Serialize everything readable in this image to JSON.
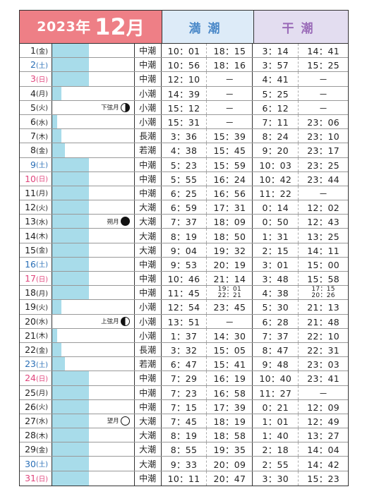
{
  "header": {
    "year": "2023",
    "year_suffix": "年",
    "month": "12",
    "month_suffix": "月",
    "high_label": "満潮",
    "low_label": "干潮"
  },
  "colors": {
    "month_bg": "#ee7f86",
    "high_bg": "#ddebf8",
    "low_bg": "#e3ddf0",
    "bar": "#a8dcea",
    "saturday": "#2a6fb6",
    "sunday": "#e0457c"
  },
  "rows": [
    {
      "day": "1",
      "wd": "(金)",
      "tide": "中潮",
      "bar": 0.45,
      "h1": "10：01",
      "h2": "18：15",
      "l1": "3：14",
      "l2": "14：41",
      "type": "n"
    },
    {
      "day": "2",
      "wd": "(土)",
      "tide": "中潮",
      "bar": 0.45,
      "h1": "10：56",
      "h2": "18：16",
      "l1": "3：57",
      "l2": "15：25",
      "type": "sat"
    },
    {
      "day": "3",
      "wd": "(日)",
      "tide": "中潮",
      "bar": 0.45,
      "h1": "12：10",
      "h2": "－",
      "l1": "4：41",
      "l2": "－",
      "type": "sun"
    },
    {
      "day": "4",
      "wd": "(月)",
      "tide": "小潮",
      "bar": 0.11,
      "h1": "14：39",
      "h2": "－",
      "l1": "5：25",
      "l2": "－",
      "type": "n"
    },
    {
      "day": "5",
      "wd": "(火)",
      "tide": "小潮",
      "bar": 0.0,
      "h1": "15：12",
      "h2": "－",
      "l1": "6：12",
      "l2": "－",
      "type": "n",
      "moon": "下弦月",
      "moonshape": "last"
    },
    {
      "day": "6",
      "wd": "(水)",
      "tide": "小潮",
      "bar": 0.06,
      "h1": "15：31",
      "h2": "－",
      "l1": "7：11",
      "l2": "23：06",
      "type": "n"
    },
    {
      "day": "7",
      "wd": "(木)",
      "tide": "長潮",
      "bar": 0.11,
      "h1": "3：36",
      "h2": "15：39",
      "l1": "8：24",
      "l2": "23：10",
      "type": "n"
    },
    {
      "day": "8",
      "wd": "(金)",
      "tide": "若潮",
      "bar": 0.16,
      "h1": "4：38",
      "h2": "15：45",
      "l1": "9：20",
      "l2": "23：17",
      "type": "n"
    },
    {
      "day": "9",
      "wd": "(土)",
      "tide": "中潮",
      "bar": 0.45,
      "h1": "5：23",
      "h2": "15：59",
      "l1": "10：03",
      "l2": "23：25",
      "type": "sat"
    },
    {
      "day": "10",
      "wd": "(日)",
      "tide": "中潮",
      "bar": 0.45,
      "h1": "5：55",
      "h2": "16：24",
      "l1": "10：42",
      "l2": "23：44",
      "type": "sun"
    },
    {
      "day": "11",
      "wd": "(月)",
      "tide": "中潮",
      "bar": 0.45,
      "h1": "6：25",
      "h2": "16：56",
      "l1": "11：22",
      "l2": "－",
      "type": "n"
    },
    {
      "day": "12",
      "wd": "(火)",
      "tide": "大潮",
      "bar": 0.45,
      "h1": "6：59",
      "h2": "17：31",
      "l1": "0：14",
      "l2": "12：02",
      "type": "n"
    },
    {
      "day": "13",
      "wd": "(水)",
      "tide": "大潮",
      "bar": 0.45,
      "h1": "7：37",
      "h2": "18：09",
      "l1": "0：50",
      "l2": "12：43",
      "type": "n",
      "moon": "朔月",
      "moonshape": "new"
    },
    {
      "day": "14",
      "wd": "(木)",
      "tide": "大潮",
      "bar": 0.45,
      "h1": "8：19",
      "h2": "18：50",
      "l1": "1：31",
      "l2": "13：25",
      "type": "n"
    },
    {
      "day": "15",
      "wd": "(金)",
      "tide": "大潮",
      "bar": 0.45,
      "h1": "9：04",
      "h2": "19：32",
      "l1": "2：15",
      "l2": "14：11",
      "type": "n"
    },
    {
      "day": "16",
      "wd": "(土)",
      "tide": "中潮",
      "bar": 0.45,
      "h1": "9：53",
      "h2": "20：19",
      "l1": "3：01",
      "l2": "15：00",
      "type": "sat"
    },
    {
      "day": "17",
      "wd": "(日)",
      "tide": "中潮",
      "bar": 0.45,
      "h1": "10：46",
      "h2": "21：14",
      "l1": "3：48",
      "l2": "15：58",
      "type": "sun"
    },
    {
      "day": "18",
      "wd": "(月)",
      "tide": "中潮",
      "bar": 0.45,
      "h1": "11：45",
      "h2a": "19：01",
      "h2b": "22：21",
      "l1": "4：38",
      "l2a": "17：15",
      "l2b": "20：26",
      "type": "n"
    },
    {
      "day": "19",
      "wd": "(火)",
      "tide": "小潮",
      "bar": 0.11,
      "h1": "12：54",
      "h2": "23：45",
      "l1": "5：30",
      "l2": "21：13",
      "type": "n"
    },
    {
      "day": "20",
      "wd": "(水)",
      "tide": "小潮",
      "bar": 0.0,
      "h1": "13：51",
      "h2": "－",
      "l1": "6：28",
      "l2": "21：48",
      "type": "n",
      "moon": "上弦月",
      "moonshape": "first"
    },
    {
      "day": "21",
      "wd": "(木)",
      "tide": "小潮",
      "bar": 0.06,
      "h1": "1：37",
      "h2": "14：30",
      "l1": "7：37",
      "l2": "22：10",
      "type": "n"
    },
    {
      "day": "22",
      "wd": "(金)",
      "tide": "長潮",
      "bar": 0.11,
      "h1": "3：32",
      "h2": "15：05",
      "l1": "8：47",
      "l2": "22：31",
      "type": "n"
    },
    {
      "day": "23",
      "wd": "(土)",
      "tide": "若潮",
      "bar": 0.16,
      "h1": "6：47",
      "h2": "15：41",
      "l1": "9：48",
      "l2": "23：03",
      "type": "sat"
    },
    {
      "day": "24",
      "wd": "(日)",
      "tide": "中潮",
      "bar": 0.45,
      "h1": "7：29",
      "h2": "16：19",
      "l1": "10：40",
      "l2": "23：41",
      "type": "sun"
    },
    {
      "day": "25",
      "wd": "(月)",
      "tide": "中潮",
      "bar": 0.45,
      "h1": "7：23",
      "h2": "16：58",
      "l1": "11：27",
      "l2": "－",
      "type": "n"
    },
    {
      "day": "26",
      "wd": "(火)",
      "tide": "中潮",
      "bar": 0.45,
      "h1": "7：15",
      "h2": "17：39",
      "l1": "0：21",
      "l2": "12：09",
      "type": "n"
    },
    {
      "day": "27",
      "wd": "(水)",
      "tide": "大潮",
      "bar": 0.45,
      "h1": "7：45",
      "h2": "18：19",
      "l1": "1：01",
      "l2": "12：49",
      "type": "n",
      "moon": "望月",
      "moonshape": "full"
    },
    {
      "day": "28",
      "wd": "(木)",
      "tide": "大潮",
      "bar": 0.45,
      "h1": "8：19",
      "h2": "18：58",
      "l1": "1：40",
      "l2": "13：27",
      "type": "n"
    },
    {
      "day": "29",
      "wd": "(金)",
      "tide": "大潮",
      "bar": 0.45,
      "h1": "8：55",
      "h2": "19：35",
      "l1": "2：18",
      "l2": "14：04",
      "type": "n"
    },
    {
      "day": "30",
      "wd": "(土)",
      "tide": "大潮",
      "bar": 0.45,
      "h1": "9：33",
      "h2": "20：09",
      "l1": "2：55",
      "l2": "14：42",
      "type": "sat"
    },
    {
      "day": "31",
      "wd": "(日)",
      "tide": "中潮",
      "bar": 0.45,
      "h1": "10：11",
      "h2": "20：47",
      "l1": "3：30",
      "l2": "15：23",
      "type": "sun"
    }
  ]
}
